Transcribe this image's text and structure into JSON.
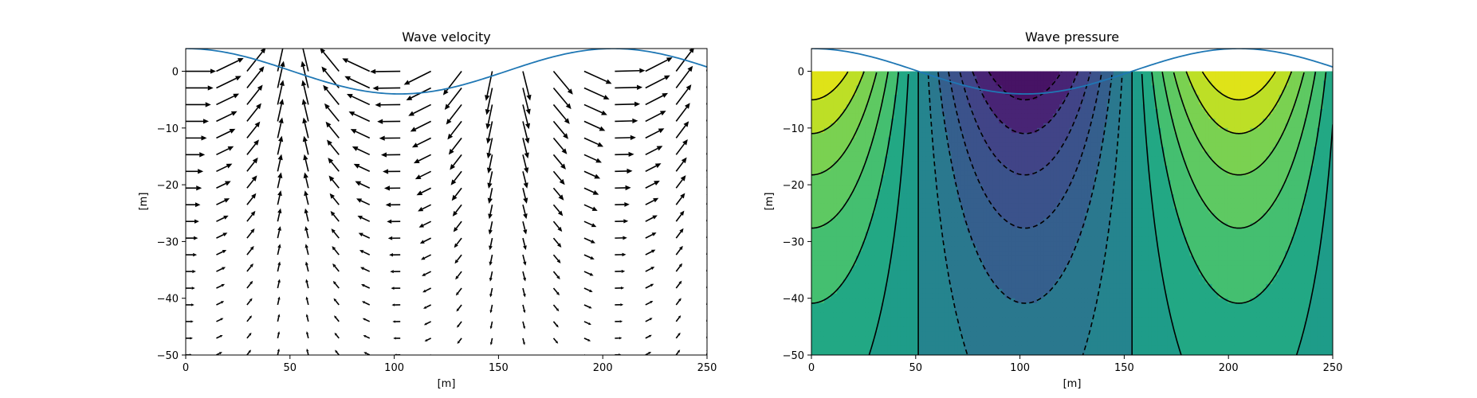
{
  "chart_data": [
    {
      "type": "quiver",
      "title": "Wave velocity",
      "xlabel": "[m]",
      "ylabel": "[m]",
      "xlim": [
        0,
        250
      ],
      "ylim": [
        -50,
        4
      ],
      "xticks": [
        0,
        50,
        100,
        150,
        200,
        250
      ],
      "yticks": [
        0,
        -10,
        -20,
        -30,
        -40,
        -50
      ],
      "xtick_labels": [
        "0",
        "50",
        "100",
        "150",
        "200",
        "250"
      ],
      "ytick_labels": [
        "0",
        "−10",
        "−20",
        "−30",
        "−40",
        "−50"
      ],
      "grid": false,
      "wave": {
        "amplitude": 4,
        "wavelength": 205,
        "crest_x": 0,
        "color": "#1f77b4"
      },
      "arrow_color": "#000000",
      "arrow_grid": {
        "x_start": 0,
        "x_step": 14.7,
        "x_count": 18,
        "y_start": 0,
        "y_step": -2.94,
        "y_count": 18
      }
    },
    {
      "type": "contour",
      "title": "Wave pressure",
      "xlabel": "[m]",
      "ylabel": "[m]",
      "xlim": [
        0,
        250
      ],
      "ylim": [
        -50,
        4
      ],
      "xticks": [
        0,
        50,
        100,
        150,
        200,
        250
      ],
      "yticks": [
        0,
        -10,
        -20,
        -30,
        -40,
        -50
      ],
      "xtick_labels": [
        "0",
        "50",
        "100",
        "150",
        "200",
        "250"
      ],
      "ytick_labels": [
        "0",
        "−10",
        "−20",
        "−30",
        "−40",
        "−50"
      ],
      "grid": false,
      "wave": {
        "amplitude": 4,
        "wavelength": 205,
        "crest_x": 0,
        "color": "#1f77b4"
      },
      "levels": [
        -1.0,
        -0.8571,
        -0.7143,
        -0.5714,
        -0.4286,
        -0.2857,
        -0.1429,
        0.0,
        0.1429,
        0.2857,
        0.4286,
        0.5714,
        0.7143,
        0.8571,
        1.0
      ],
      "colormap": [
        "#440154",
        "#471365",
        "#482475",
        "#463480",
        "#414487",
        "#3b528b",
        "#355f8d",
        "#2f6c8e",
        "#2a788e",
        "#25848e",
        "#21918c",
        "#1e9c89",
        "#22a884",
        "#2fb47c",
        "#44bf70",
        "#5ec962",
        "#7ad151",
        "#9bd93c",
        "#bddf26",
        "#dfe318",
        "#fde725"
      ],
      "negative_linestyle": "dashed",
      "line_color": "#000000"
    }
  ]
}
